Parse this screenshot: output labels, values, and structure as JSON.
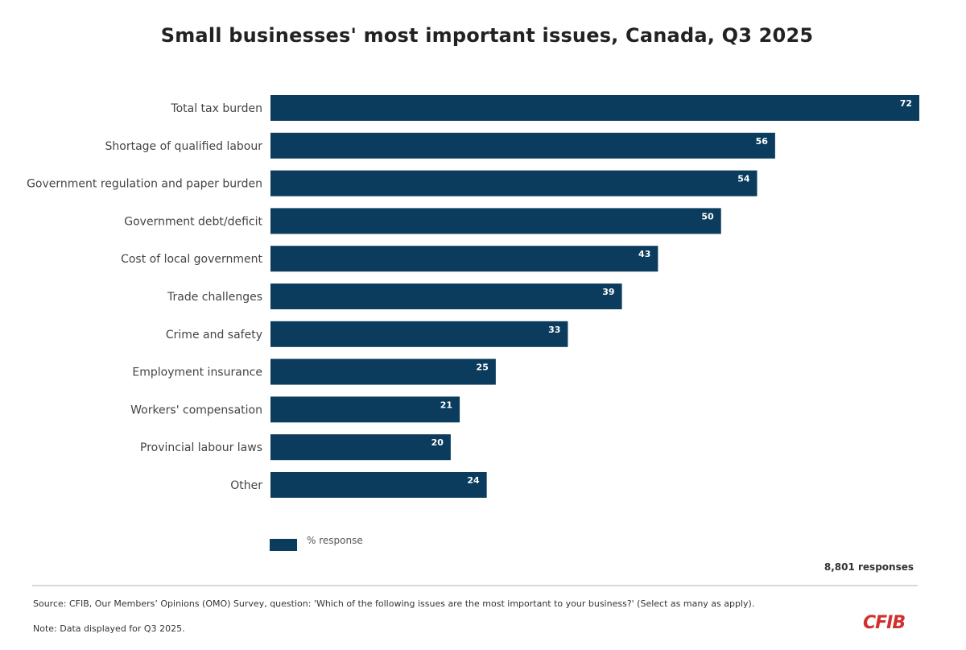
{
  "title": "Small businesses' most important issues, Canada, Q3 2025",
  "colors": {
    "bar": "#0b3c5d",
    "logo": "#d32f2f"
  },
  "chart_data": {
    "type": "bar",
    "orientation": "horizontal",
    "title": "Small businesses' most important issues, Canada, Q3 2025",
    "categories": [
      "Total tax burden",
      "Shortage of qualified labour",
      "Government regulation and paper burden",
      "Government debt/deficit",
      "Cost of local government",
      "Trade challenges",
      "Crime and safety",
      "Employment insurance",
      "Workers' compensation",
      "Provincial labour laws",
      "Other"
    ],
    "series": [
      {
        "name": "% response",
        "values": [
          72,
          56,
          54,
          50,
          43,
          39,
          33,
          25,
          21,
          20,
          24
        ]
      }
    ],
    "xlim": [
      0,
      72
    ],
    "grid": false,
    "legend": "bottom-left"
  },
  "legend_label": "% response",
  "responses": "8,801 responses",
  "source": "Source: CFIB, Our Members’ Opinions (OMO) Survey, question: 'Which of the following issues are the most important to your business?' (Select as many as apply).",
  "note": "Note: Data displayed for Q3 2025.",
  "logo": "CFIB"
}
